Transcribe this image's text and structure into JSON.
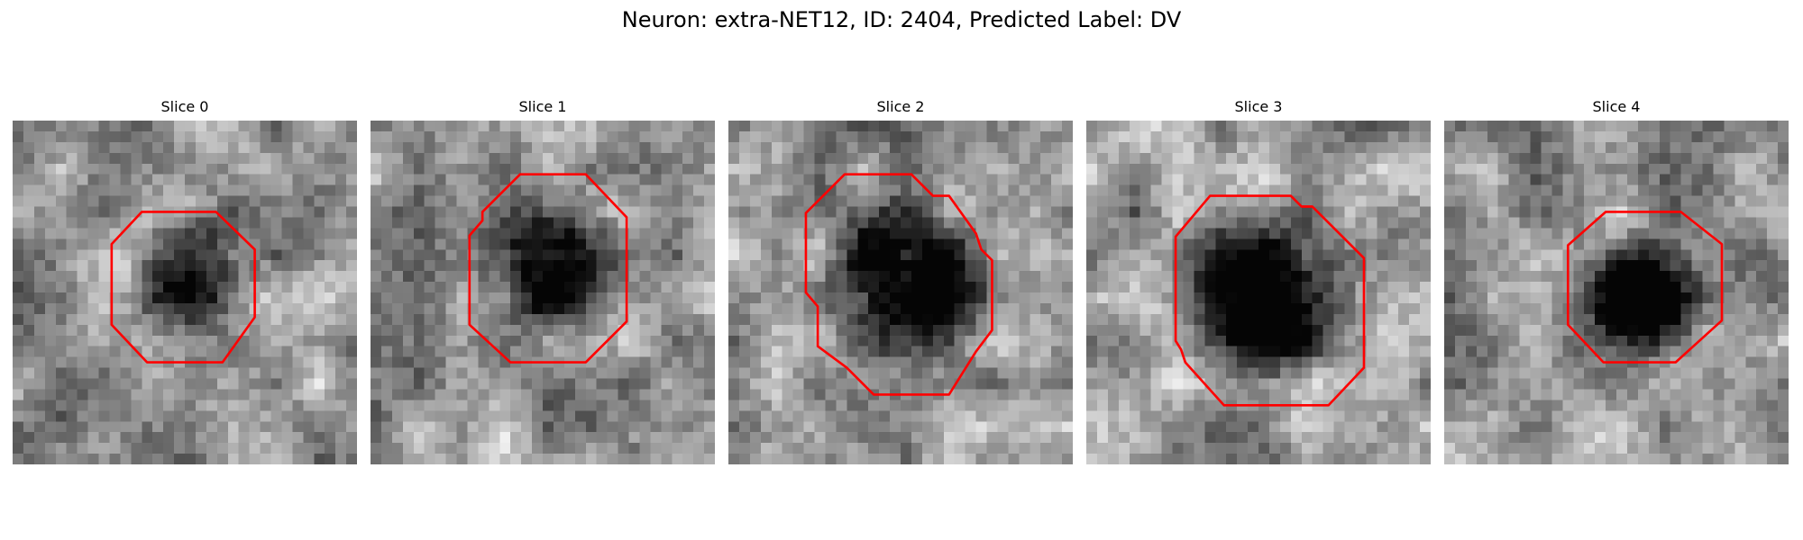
{
  "figure": {
    "title": "Neuron: extra-NET12, ID: 2404, Predicted Label: DV",
    "contour_color": "#ff0000",
    "colormap": "gray",
    "grid_size": 32
  },
  "panels": [
    {
      "title": "Slice 0",
      "seed": 11,
      "blob": {
        "cx": 16.5,
        "cy": 13.5,
        "r": 6.5,
        "darkness": 0.55
      },
      "contour": [
        [
          12,
          8.5
        ],
        [
          18.9,
          8.5
        ],
        [
          22.5,
          12
        ],
        [
          22.5,
          18.3
        ],
        [
          19.5,
          22.5
        ],
        [
          12.5,
          22.5
        ],
        [
          9.2,
          19
        ],
        [
          9.2,
          11.5
        ]
      ]
    },
    {
      "title": "Slice 1",
      "seed": 23,
      "blob": {
        "cx": 16,
        "cy": 12.5,
        "r": 8,
        "darkness": 0.6
      },
      "contour": [
        [
          13.9,
          5
        ],
        [
          20,
          5
        ],
        [
          23.8,
          9
        ],
        [
          23.8,
          18.7
        ],
        [
          20,
          22.5
        ],
        [
          13,
          22.5
        ],
        [
          9.2,
          19
        ],
        [
          9.2,
          10.7
        ],
        [
          10.4,
          9.3
        ],
        [
          10.4,
          8.5
        ]
      ]
    },
    {
      "title": "Slice 2",
      "seed": 37,
      "blob": {
        "cx": 16,
        "cy": 14.5,
        "r": 9,
        "darkness": 0.62
      },
      "contour": [
        [
          10.8,
          5
        ],
        [
          17,
          5
        ],
        [
          19,
          7
        ],
        [
          20.5,
          7
        ],
        [
          23,
          10.5
        ],
        [
          23.5,
          12
        ],
        [
          24.5,
          13
        ],
        [
          24.5,
          19.5
        ],
        [
          23,
          21.5
        ],
        [
          20.5,
          25.5
        ],
        [
          13.5,
          25.5
        ],
        [
          11,
          23
        ],
        [
          8.3,
          21
        ],
        [
          8.3,
          17.3
        ],
        [
          7.2,
          16
        ],
        [
          7.2,
          8.6
        ]
      ]
    },
    {
      "title": "Slice 3",
      "seed": 41,
      "blob": {
        "cx": 15.5,
        "cy": 15.5,
        "r": 9.5,
        "darkness": 0.65
      },
      "contour": [
        [
          11.5,
          7
        ],
        [
          19,
          7
        ],
        [
          20,
          8
        ],
        [
          21,
          8
        ],
        [
          25.8,
          12.8
        ],
        [
          25.8,
          23
        ],
        [
          22.5,
          26.5
        ],
        [
          12.8,
          26.5
        ],
        [
          9.2,
          22.5
        ],
        [
          8.8,
          21.3
        ],
        [
          8.3,
          20.5
        ],
        [
          8.3,
          10.8
        ]
      ]
    },
    {
      "title": "Slice 4",
      "seed": 53,
      "blob": {
        "cx": 18,
        "cy": 16,
        "r": 6.5,
        "darkness": 0.6
      },
      "contour": [
        [
          15,
          8.5
        ],
        [
          22,
          8.5
        ],
        [
          25.8,
          11.5
        ],
        [
          25.8,
          18.6
        ],
        [
          21.5,
          22.5
        ],
        [
          14.8,
          22.5
        ],
        [
          11.5,
          19
        ],
        [
          11.5,
          11.6
        ]
      ]
    }
  ]
}
